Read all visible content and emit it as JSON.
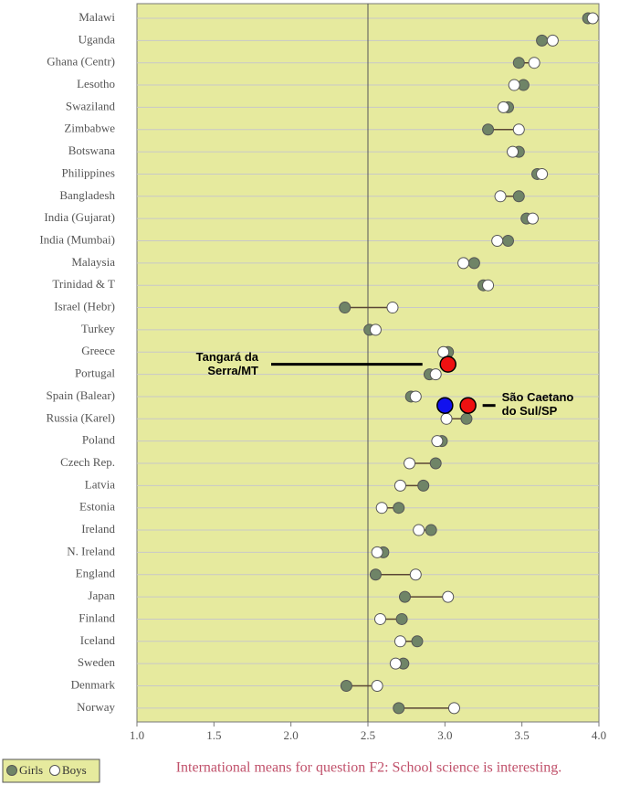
{
  "chart_data": {
    "type": "dumbbell",
    "categories": [
      "Malawi",
      "Uganda",
      "Ghana (Centr)",
      "Lesotho",
      "Swaziland",
      "Zimbabwe",
      "Botswana",
      "Philippines",
      "Bangladesh",
      "India (Gujarat)",
      "India (Mumbai)",
      "Malaysia",
      "Trinidad & T",
      "Israel (Hebr)",
      "Turkey",
      "Greece",
      "Portugal",
      "Spain (Balear)",
      "Russia (Karel)",
      "Poland",
      "Czech Rep.",
      "Latvia",
      "Estonia",
      "Ireland",
      "N. Ireland",
      "England",
      "Japan",
      "Finland",
      "Iceland",
      "Sweden",
      "Denmark",
      "Norway"
    ],
    "series": [
      {
        "name": "Girls",
        "color": "#6f8467",
        "values": [
          3.93,
          3.63,
          3.48,
          3.51,
          3.41,
          3.28,
          3.48,
          3.6,
          3.48,
          3.53,
          3.41,
          3.19,
          3.25,
          2.35,
          2.51,
          3.02,
          2.9,
          2.78,
          3.14,
          2.98,
          2.94,
          2.86,
          2.7,
          2.91,
          2.6,
          2.55,
          2.74,
          2.72,
          2.82,
          2.73,
          2.36,
          2.7
        ]
      },
      {
        "name": "Boys",
        "color": "#ffffff",
        "values": [
          3.96,
          3.7,
          3.58,
          3.45,
          3.38,
          3.48,
          3.44,
          3.63,
          3.36,
          3.57,
          3.34,
          3.12,
          3.28,
          2.66,
          2.55,
          2.99,
          2.94,
          2.81,
          3.01,
          2.95,
          2.77,
          2.71,
          2.59,
          2.83,
          2.56,
          2.81,
          3.02,
          2.58,
          2.71,
          2.68,
          2.56,
          3.06
        ]
      }
    ],
    "xlim": [
      1,
      4
    ],
    "xticks": [
      {
        "value": 1,
        "label": "1.0"
      },
      {
        "value": 1.5,
        "label": "1.5"
      },
      {
        "value": 2,
        "label": "2.0"
      },
      {
        "value": 2.5,
        "label": "2.5"
      },
      {
        "value": 3,
        "label": "3.0"
      },
      {
        "value": 3.5,
        "label": "3.5"
      },
      {
        "value": 4,
        "label": "4.0"
      }
    ],
    "reference_line": 2.5,
    "grid": true,
    "background": "#e6ea9e",
    "caption": "International means for question F2: School science is interesting.",
    "annotations": [
      {
        "label": [
          "Tangará da",
          "Serra/MT"
        ],
        "points": [
          {
            "value": 3.02,
            "color": "#ee1111"
          }
        ]
      },
      {
        "label": [
          "São Caetano",
          "do Sul/SP"
        ],
        "points": [
          {
            "value": 3.0,
            "color": "#1111ee"
          },
          {
            "value": 3.15,
            "color": "#ee1111"
          }
        ]
      }
    ]
  }
}
